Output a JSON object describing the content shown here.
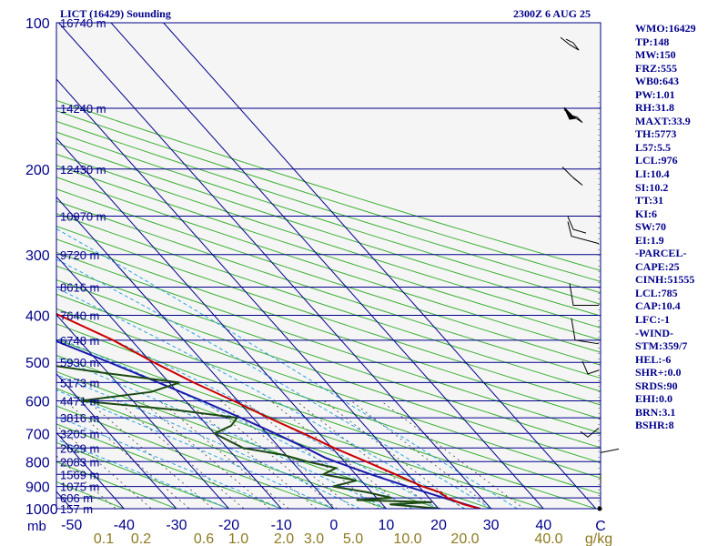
{
  "header": {
    "station": "LICT (16429) Sounding",
    "time": "2300Z  6 AUG 25"
  },
  "indices": [
    "WMO:16429",
    "TP:148",
    "MW:150",
    "FRZ:555",
    "WB0:643",
    "PW:1.01",
    "RH:31.8",
    "MAXT:33.9",
    "TH:5773",
    "L57:5.5",
    "LCL:976",
    "LI:10.4",
    "SI:10.2",
    "TT:31",
    "KI:6",
    "SW:70",
    "EI:1.9",
    "-PARCEL-",
    "CAPE:25",
    "CINH:51555",
    "LCL:785",
    "CAP:10.4",
    "LFC:-1",
    "-WIND-",
    "STM:359/7",
    "HEL:-6",
    "SHR+:0.0",
    "SRDS:90",
    "EHI:0.0",
    "BRN:3.1",
    "BSHR:8"
  ],
  "colors": {
    "background": "#f5f5f5",
    "isobar": "#00008b",
    "isotherm": "#00008b",
    "dry_adiabat": "#3cb034",
    "moist_adiabat": "#2aa4e0",
    "mixing_ratio": "#444444",
    "temperature": "#cc0000",
    "dewpoint": "#1b4a12",
    "parcel": "#1a1aaa",
    "wind": "#000000"
  },
  "chart_data": {
    "type": "skew-t",
    "ylabel": "mb",
    "xlabel": "C",
    "mixing_ratio_unit": "g/kg",
    "pressure_ticks": [
      "100",
      "200",
      "300",
      "400",
      "500",
      "600",
      "700",
      "800",
      "900",
      "1000"
    ],
    "temperature_ticks": [
      "-50",
      "-40",
      "-30",
      "-20",
      "-10",
      "0",
      "10",
      "20",
      "30",
      "40"
    ],
    "mixing_ratio_ticks": [
      "0.1",
      "0.2",
      "0.6",
      "1.0",
      "2.0",
      "3.0",
      "5.0",
      "10.0",
      "20.0",
      "40.0"
    ],
    "height_labels": [
      {
        "p": 100,
        "label": "16740 m"
      },
      {
        "p": 150,
        "label": "14240 m"
      },
      {
        "p": 200,
        "label": "12430 m"
      },
      {
        "p": 250,
        "label": "10970 m"
      },
      {
        "p": 300,
        "label": "9720 m"
      },
      {
        "p": 350,
        "label": "8616 m"
      },
      {
        "p": 400,
        "label": "7640 m"
      },
      {
        "p": 450,
        "label": "6748 m"
      },
      {
        "p": 500,
        "label": "5930 m"
      },
      {
        "p": 550,
        "label": "5173 m"
      },
      {
        "p": 600,
        "label": "4471 m"
      },
      {
        "p": 650,
        "label": "3816 m"
      },
      {
        "p": 700,
        "label": "3205 m"
      },
      {
        "p": 750,
        "label": "2629 m"
      },
      {
        "p": 800,
        "label": "2083 m"
      },
      {
        "p": 850,
        "label": "1569 m"
      },
      {
        "p": 900,
        "label": "1075 m"
      },
      {
        "p": 950,
        "label": "606 m"
      },
      {
        "p": 1000,
        "label": "157 m"
      }
    ],
    "temperature_profile": [
      {
        "p": 1000,
        "t": 27.9
      },
      {
        "p": 980,
        "t": 25.5
      },
      {
        "p": 950,
        "t": 23.5
      },
      {
        "p": 925,
        "t": 23.0
      },
      {
        "p": 900,
        "t": 20.7
      },
      {
        "p": 850,
        "t": 17.6
      },
      {
        "p": 800,
        "t": 14.2
      },
      {
        "p": 750,
        "t": 10.4
      },
      {
        "p": 700,
        "t": 7.0
      },
      {
        "p": 650,
        "t": 3.0
      },
      {
        "p": 600,
        "t": -0.8
      },
      {
        "p": 550,
        "t": -5.3
      },
      {
        "p": 500,
        "t": -9.5
      },
      {
        "p": 450,
        "t": -13.5
      },
      {
        "p": 400,
        "t": -19.5
      },
      {
        "p": 350,
        "t": -26.0
      },
      {
        "p": 300,
        "t": -33.5
      },
      {
        "p": 250,
        "t": -42.0
      },
      {
        "p": 200,
        "t": -53.0
      },
      {
        "p": 175,
        "t": -56.0
      },
      {
        "p": 150,
        "t": -60.5
      },
      {
        "p": 140,
        "t": -63.0
      },
      {
        "p": 130,
        "t": -65.0
      },
      {
        "p": 120,
        "t": -67.0
      },
      {
        "p": 110,
        "t": -68.0
      },
      {
        "p": 100,
        "t": -69.0
      }
    ],
    "dewpoint_profile": [
      {
        "p": 1000,
        "t": 20.3
      },
      {
        "p": 980,
        "t": 11.4
      },
      {
        "p": 970,
        "t": 19.8
      },
      {
        "p": 960,
        "t": 5.8
      },
      {
        "p": 950,
        "t": 12.9
      },
      {
        "p": 925,
        "t": 9.1
      },
      {
        "p": 900,
        "t": 3.6
      },
      {
        "p": 875,
        "t": 9.1
      },
      {
        "p": 850,
        "t": 3.8
      },
      {
        "p": 825,
        "t": 7.3
      },
      {
        "p": 800,
        "t": 3.0
      },
      {
        "p": 775,
        "t": -0.5
      },
      {
        "p": 750,
        "t": -7.0
      },
      {
        "p": 700,
        "t": -10.0
      },
      {
        "p": 675,
        "t": -5.5
      },
      {
        "p": 650,
        "t": -3.0
      },
      {
        "p": 625,
        "t": -14.0
      },
      {
        "p": 600,
        "t": -30.0
      },
      {
        "p": 575,
        "t": -15.0
      },
      {
        "p": 550,
        "t": -8.0
      },
      {
        "p": 525,
        "t": -21.0
      },
      {
        "p": 500,
        "t": -33.0
      },
      {
        "p": 475,
        "t": -27.0
      },
      {
        "p": 450,
        "t": -26.0
      },
      {
        "p": 400,
        "t": -30.0
      },
      {
        "p": 375,
        "t": -41.0
      },
      {
        "p": 350,
        "t": -47.0
      },
      {
        "p": 300,
        "t": -58.0
      },
      {
        "p": 250,
        "t": -67.0
      },
      {
        "p": 225,
        "t": -70.0
      },
      {
        "p": 200,
        "t": -77.0
      },
      {
        "p": 175,
        "t": -86.0
      },
      {
        "p": 150,
        "t": -93.0
      },
      {
        "p": 140,
        "t": -93.0
      },
      {
        "p": 120,
        "t": -94.0
      },
      {
        "p": 110,
        "t": -95.0
      },
      {
        "p": 100,
        "t": -96.0
      }
    ],
    "parcel_profile": [
      {
        "p": 1000,
        "t": 27.9
      },
      {
        "p": 950,
        "t": 22.8
      },
      {
        "p": 900,
        "t": 17.8
      },
      {
        "p": 850,
        "t": 12.9
      },
      {
        "p": 800,
        "t": 8.3
      },
      {
        "p": 785,
        "t": 7.0
      },
      {
        "p": 750,
        "t": 5.0
      },
      {
        "p": 700,
        "t": 1.6
      },
      {
        "p": 650,
        "t": -2.3
      },
      {
        "p": 600,
        "t": -6.8
      },
      {
        "p": 550,
        "t": -12.0
      },
      {
        "p": 500,
        "t": -18.0
      },
      {
        "p": 450,
        "t": -24.8
      },
      {
        "p": 400,
        "t": -32.5
      },
      {
        "p": 350,
        "t": -41.5
      },
      {
        "p": 300,
        "t": -51.5
      },
      {
        "p": 250,
        "t": -63.5
      },
      {
        "p": 200,
        "t": -78.5
      },
      {
        "p": 150,
        "t": -98.0
      },
      {
        "p": 140,
        "t": -103.0
      },
      {
        "p": 125,
        "t": -111.0
      }
    ]
  }
}
